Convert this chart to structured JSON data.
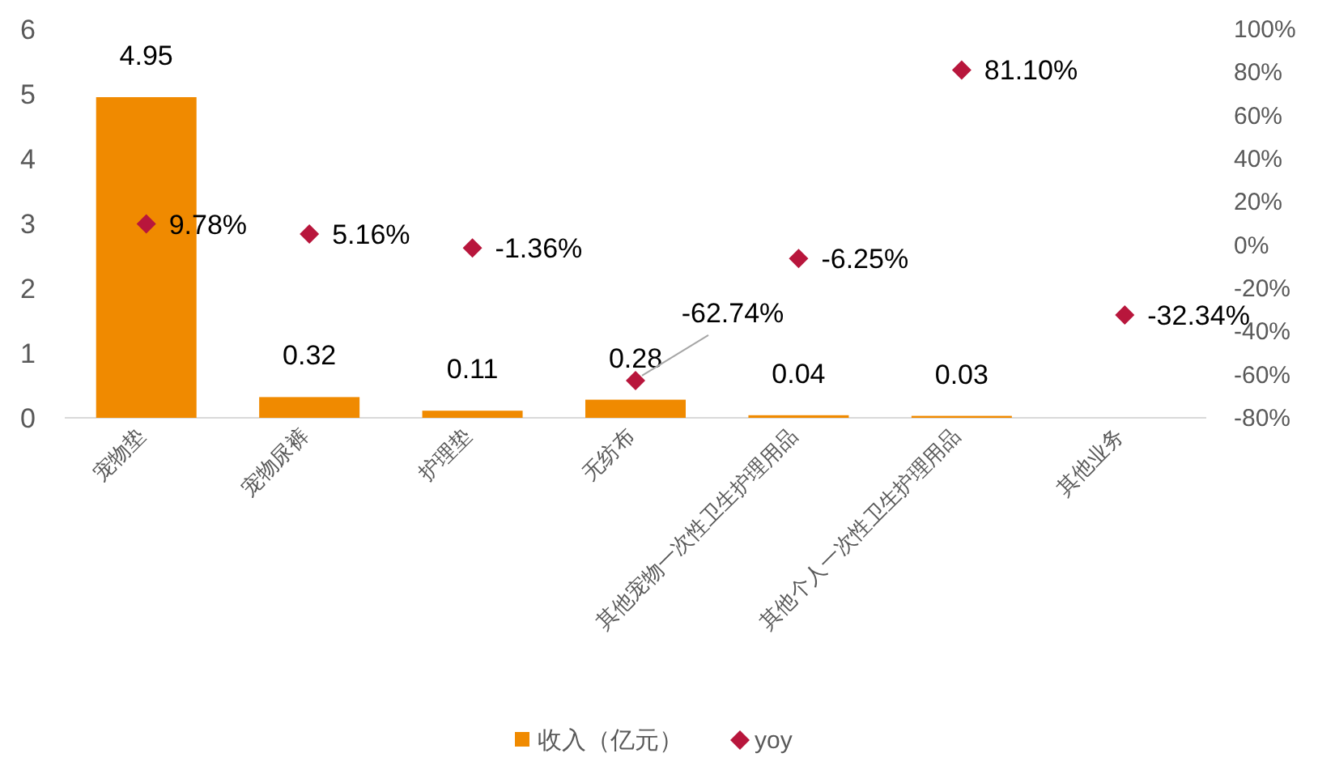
{
  "chart_data": {
    "type": "bar",
    "categories": [
      "宠物垫",
      "宠物尿裤",
      "护理垫",
      "无纺布",
      "其他宠物一次性卫生护理用品",
      "其他个人一次性卫生护理用品",
      "其他业务"
    ],
    "series": [
      {
        "name": "收入（亿元）",
        "color": "#f08a00",
        "values": [
          4.95,
          0.32,
          0.11,
          0.28,
          0.04,
          0.03,
          null
        ],
        "value_labels": [
          "4.95",
          "0.32",
          "0.11",
          "0.28",
          "0.04",
          "0.03",
          null
        ]
      },
      {
        "name": "yoy",
        "type": "scatter",
        "axis": "y2",
        "color": "#b8163c",
        "marker": "diamond",
        "values": [
          9.78,
          5.16,
          -1.36,
          -62.74,
          -6.25,
          81.1,
          -32.34
        ],
        "value_labels": [
          "9.78%",
          "5.16%",
          "-1.36%",
          "-62.74%",
          "-6.25%",
          "81.10%",
          "-32.34%"
        ]
      }
    ],
    "ylim": [
      0,
      6
    ],
    "yticks": [
      0,
      1,
      2,
      3,
      4,
      5,
      6
    ],
    "y2lim": [
      -80,
      100
    ],
    "y2ticks": [
      {
        "value": -80,
        "label": "-80%"
      },
      {
        "value": -60,
        "label": "-60%"
      },
      {
        "value": -40,
        "label": "-40%"
      },
      {
        "value": -20,
        "label": "-20%"
      },
      {
        "value": 0,
        "label": "0%"
      },
      {
        "value": 20,
        "label": "20%"
      },
      {
        "value": 40,
        "label": "40%"
      },
      {
        "value": 60,
        "label": "60%"
      },
      {
        "value": 80,
        "label": "80%"
      },
      {
        "value": 100,
        "label": "100%"
      }
    ],
    "legend": "bottom",
    "grid": false
  }
}
